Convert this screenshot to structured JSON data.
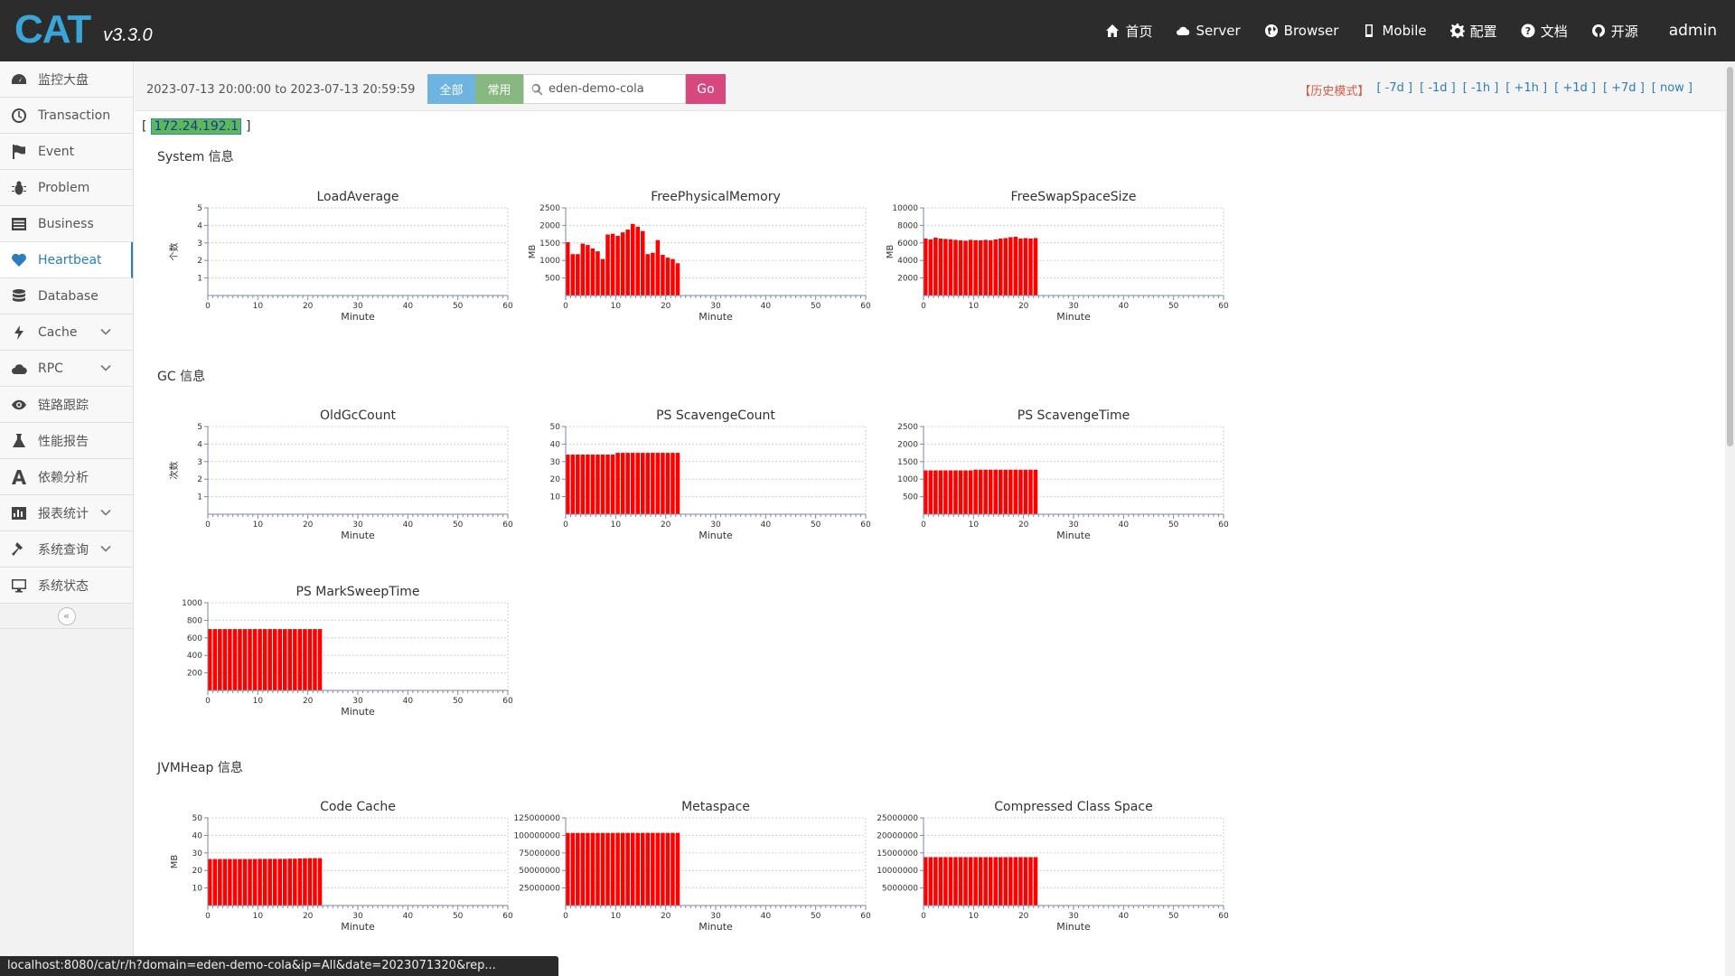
{
  "header": {
    "logo": "CAT",
    "version": "v3.3.0",
    "nav": [
      {
        "label": "首页",
        "icon": "home-icon"
      },
      {
        "label": "Server",
        "icon": "cloud-icon"
      },
      {
        "label": "Browser",
        "icon": "globe-icon"
      },
      {
        "label": "Mobile",
        "icon": "mobile-icon"
      },
      {
        "label": "配置",
        "icon": "gear-icon"
      },
      {
        "label": "文档",
        "icon": "question-icon"
      },
      {
        "label": "开源",
        "icon": "github-icon"
      }
    ],
    "user": "admin"
  },
  "sidebar": {
    "items": [
      {
        "label": "监控大盘",
        "icon": "dashboard-icon"
      },
      {
        "label": "Transaction",
        "icon": "clock-icon"
      },
      {
        "label": "Event",
        "icon": "flag-icon"
      },
      {
        "label": "Problem",
        "icon": "bug-icon"
      },
      {
        "label": "Business",
        "icon": "list-icon"
      },
      {
        "label": "Heartbeat",
        "icon": "heart-icon",
        "active": true
      },
      {
        "label": "Database",
        "icon": "database-icon"
      },
      {
        "label": "Cache",
        "icon": "bolt-icon",
        "expandable": true
      },
      {
        "label": "RPC",
        "icon": "cloud-icon",
        "expandable": true
      },
      {
        "label": "链路跟踪",
        "icon": "eye-icon"
      },
      {
        "label": "性能报告",
        "icon": "flask-icon"
      },
      {
        "label": "依赖分析",
        "icon": "dependency-icon"
      },
      {
        "label": "报表统计",
        "icon": "bar-chart-icon",
        "expandable": true
      },
      {
        "label": "系统查询",
        "icon": "hammer-icon",
        "expandable": true
      },
      {
        "label": "系统状态",
        "icon": "monitor-icon"
      }
    ],
    "collapse_label": "«"
  },
  "toolbar": {
    "date_range": "2023-07-13 20:00:00 to 2023-07-13 20:59:59",
    "btn_all": "全部",
    "btn_common": "常用",
    "search_value": "eden-demo-cola",
    "go_label": "Go",
    "history_mode": "【历史模式】",
    "time_links": [
      "[ -7d ]",
      "[ -1d ]",
      "[ -1h ]",
      "[ +1h ]",
      "[ +1d ]",
      "[ +7d ]",
      "[ now ]"
    ]
  },
  "ip": {
    "open": "[",
    "value": "172.24.192.1",
    "close": "]"
  },
  "sections": {
    "system": "System 信息",
    "gc": "GC 信息",
    "jvmheap": "JVMHeap 信息"
  },
  "status_url": "localhost:8080/cat/r/h?domain=eden-demo-cola&ip=All&date=2023071320&rep...",
  "chart_data": [
    {
      "type": "bar",
      "title": "LoadAverage",
      "xlabel": "Minute",
      "ylabel": "个数",
      "xlim": [
        0,
        60
      ],
      "ylim": [
        0,
        5
      ],
      "yticks": [
        1,
        2,
        3,
        4,
        5
      ],
      "x": [],
      "values": []
    },
    {
      "type": "bar",
      "title": "FreePhysicalMemory",
      "xlabel": "Minute",
      "ylabel": "MB",
      "xlim": [
        0,
        60
      ],
      "ylim": [
        0,
        2500
      ],
      "yticks": [
        500,
        1000,
        1500,
        2000,
        2500
      ],
      "x": [
        0,
        1,
        2,
        3,
        4,
        5,
        6,
        7,
        8,
        9,
        10,
        11,
        12,
        13,
        14,
        15,
        16,
        17,
        18,
        19,
        20,
        21,
        22
      ],
      "values": [
        1520,
        1180,
        1180,
        1480,
        1440,
        1340,
        1260,
        1040,
        1740,
        1760,
        1700,
        1800,
        1880,
        2040,
        1960,
        1840,
        1180,
        1220,
        1580,
        1160,
        1080,
        1040,
        920
      ]
    },
    {
      "type": "bar",
      "title": "FreeSwapSpaceSize",
      "xlabel": "Minute",
      "ylabel": "MB",
      "xlim": [
        0,
        60
      ],
      "ylim": [
        0,
        10000
      ],
      "yticks": [
        2000,
        4000,
        6000,
        8000,
        10000
      ],
      "x": [
        0,
        1,
        2,
        3,
        4,
        5,
        6,
        7,
        8,
        9,
        10,
        11,
        12,
        13,
        14,
        15,
        16,
        17,
        18,
        19,
        20,
        21,
        22
      ],
      "values": [
        6500,
        6400,
        6600,
        6500,
        6450,
        6400,
        6350,
        6300,
        6250,
        6350,
        6300,
        6300,
        6350,
        6300,
        6400,
        6500,
        6550,
        6650,
        6700,
        6500,
        6550,
        6500,
        6550
      ]
    },
    {
      "type": "bar",
      "title": "OldGcCount",
      "xlabel": "Minute",
      "ylabel": "次数",
      "xlim": [
        0,
        60
      ],
      "ylim": [
        0,
        5
      ],
      "yticks": [
        1,
        2,
        3,
        4,
        5
      ],
      "x": [],
      "values": []
    },
    {
      "type": "bar",
      "title": "PS ScavengeCount",
      "xlabel": "Minute",
      "ylabel": "",
      "xlim": [
        0,
        60
      ],
      "ylim": [
        0,
        50
      ],
      "yticks": [
        10,
        20,
        30,
        40,
        50
      ],
      "x": [
        0,
        1,
        2,
        3,
        4,
        5,
        6,
        7,
        8,
        9,
        10,
        11,
        12,
        13,
        14,
        15,
        16,
        17,
        18,
        19,
        20,
        21,
        22
      ],
      "values": [
        34,
        34,
        34,
        34,
        34,
        34,
        34,
        34,
        34,
        34,
        35,
        35,
        35,
        35,
        35,
        35,
        35,
        35,
        35,
        35,
        35,
        35,
        35
      ]
    },
    {
      "type": "bar",
      "title": "PS ScavengeTime",
      "xlabel": "Minute",
      "ylabel": "",
      "xlim": [
        0,
        60
      ],
      "ylim": [
        0,
        2500
      ],
      "yticks": [
        500,
        1000,
        1500,
        2000,
        2500
      ],
      "x": [
        0,
        1,
        2,
        3,
        4,
        5,
        6,
        7,
        8,
        9,
        10,
        11,
        12,
        13,
        14,
        15,
        16,
        17,
        18,
        19,
        20,
        21,
        22
      ],
      "values": [
        1250,
        1250,
        1250,
        1250,
        1250,
        1250,
        1250,
        1250,
        1250,
        1250,
        1270,
        1270,
        1270,
        1270,
        1270,
        1270,
        1270,
        1270,
        1270,
        1270,
        1270,
        1270,
        1270
      ]
    },
    {
      "type": "bar",
      "title": "PS MarkSweepTime",
      "xlabel": "Minute",
      "ylabel": "",
      "xlim": [
        0,
        60
      ],
      "ylim": [
        0,
        1000
      ],
      "yticks": [
        200,
        400,
        600,
        800,
        1000
      ],
      "x": [
        0,
        1,
        2,
        3,
        4,
        5,
        6,
        7,
        8,
        9,
        10,
        11,
        12,
        13,
        14,
        15,
        16,
        17,
        18,
        19,
        20,
        21,
        22
      ],
      "values": [
        700,
        700,
        700,
        700,
        700,
        700,
        700,
        700,
        700,
        700,
        700,
        700,
        700,
        700,
        700,
        700,
        700,
        700,
        700,
        700,
        700,
        700,
        700
      ]
    },
    {
      "type": "bar",
      "title": "Code Cache",
      "xlabel": "Minute",
      "ylabel": "MB",
      "xlim": [
        0,
        60
      ],
      "ylim": [
        0,
        50
      ],
      "yticks": [
        10,
        20,
        30,
        40,
        50
      ],
      "x": [
        0,
        1,
        2,
        3,
        4,
        5,
        6,
        7,
        8,
        9,
        10,
        11,
        12,
        13,
        14,
        15,
        16,
        17,
        18,
        19,
        20,
        21,
        22
      ],
      "values": [
        26.5,
        26.5,
        26.5,
        26.5,
        26.5,
        26.5,
        26.5,
        26.5,
        26.5,
        26.5,
        26.6,
        26.6,
        26.6,
        26.6,
        26.6,
        26.6,
        26.7,
        26.7,
        26.8,
        26.9,
        27,
        27,
        27
      ]
    },
    {
      "type": "bar",
      "title": "Metaspace",
      "xlabel": "Minute",
      "ylabel": "",
      "xlim": [
        0,
        60
      ],
      "ylim": [
        0,
        125000000
      ],
      "yticks": [
        25000000,
        50000000,
        75000000,
        100000000,
        125000000
      ],
      "x": [
        0,
        1,
        2,
        3,
        4,
        5,
        6,
        7,
        8,
        9,
        10,
        11,
        12,
        13,
        14,
        15,
        16,
        17,
        18,
        19,
        20,
        21,
        22
      ],
      "values": [
        103500000,
        103500000,
        103500000,
        103500000,
        103500000,
        103500000,
        103500000,
        103500000,
        103500000,
        103500000,
        103600000,
        103600000,
        103600000,
        103600000,
        103600000,
        103600000,
        103600000,
        103600000,
        103600000,
        103600000,
        103600000,
        103600000,
        103600000
      ]
    },
    {
      "type": "bar",
      "title": "Compressed Class Space",
      "xlabel": "Minute",
      "ylabel": "",
      "xlim": [
        0,
        60
      ],
      "ylim": [
        0,
        25000000
      ],
      "yticks": [
        5000000,
        10000000,
        15000000,
        20000000,
        25000000
      ],
      "x": [
        0,
        1,
        2,
        3,
        4,
        5,
        6,
        7,
        8,
        9,
        10,
        11,
        12,
        13,
        14,
        15,
        16,
        17,
        18,
        19,
        20,
        21,
        22
      ],
      "values": [
        13800000,
        13800000,
        13800000,
        13800000,
        13800000,
        13800000,
        13800000,
        13800000,
        13800000,
        13800000,
        13800000,
        13800000,
        13800000,
        13800000,
        13800000,
        13800000,
        13800000,
        13800000,
        13800000,
        13800000,
        13800000,
        13800000,
        13800000
      ]
    }
  ],
  "colors": {
    "bar": "#ff0000",
    "accent": "#2b7dbc",
    "topbar": "#2c2c2c",
    "go": "#d6487e"
  }
}
